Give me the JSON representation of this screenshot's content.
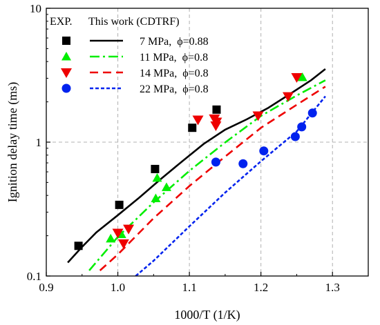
{
  "chart_data": {
    "type": "scatter",
    "xlabel": "1000/T (1/K)",
    "ylabel": "Ignition delay time (ms)",
    "xlim": [
      0.9,
      1.35
    ],
    "ylim": [
      0.1,
      10
    ],
    "yscale": "log",
    "x_ticks": [
      "0.9",
      "1.0",
      "1.1",
      "1.2",
      "1.3"
    ],
    "y_ticks": [
      "0.1",
      "1",
      "10"
    ],
    "grid": "dashed at x = 1.0, 1.1, 1.2, 1.3 and y = 1",
    "legend": {
      "position": "top-left",
      "header_exp": "EXP.",
      "header_model": "This work (CDTRF)",
      "labels": [
        "7 MPa,  ϕ=0.88",
        "11 MPa,  ϕ=0.8",
        "14 MPa,  ϕ=0.8",
        "22 MPa,  ϕ=0.8"
      ]
    },
    "series": [
      {
        "name": "7 MPa, ϕ=0.88",
        "color": "#000000",
        "marker": "square",
        "line_style": "solid",
        "exp": [
          {
            "x": 0.945,
            "y": 0.168
          },
          {
            "x": 1.002,
            "y": 0.34
          },
          {
            "x": 1.052,
            "y": 0.63
          },
          {
            "x": 1.104,
            "y": 1.28
          },
          {
            "x": 1.138,
            "y": 1.75
          }
        ],
        "model": [
          {
            "x": 0.93,
            "y": 0.126
          },
          {
            "x": 0.95,
            "y": 0.165
          },
          {
            "x": 0.97,
            "y": 0.212
          },
          {
            "x": 1.0,
            "y": 0.285
          },
          {
            "x": 1.03,
            "y": 0.385
          },
          {
            "x": 1.06,
            "y": 0.53
          },
          {
            "x": 1.09,
            "y": 0.72
          },
          {
            "x": 1.12,
            "y": 0.97
          },
          {
            "x": 1.15,
            "y": 1.24
          },
          {
            "x": 1.18,
            "y": 1.48
          },
          {
            "x": 1.21,
            "y": 1.8
          },
          {
            "x": 1.24,
            "y": 2.28
          },
          {
            "x": 1.27,
            "y": 2.9
          },
          {
            "x": 1.29,
            "y": 3.52
          }
        ]
      },
      {
        "name": "11 MPa, ϕ=0.8",
        "color": "#00ee00",
        "marker": "triangle-up",
        "line_style": "dashdot",
        "exp": [
          {
            "x": 0.99,
            "y": 0.19
          },
          {
            "x": 1.005,
            "y": 0.205
          },
          {
            "x": 1.053,
            "y": 0.38
          },
          {
            "x": 1.055,
            "y": 0.54
          },
          {
            "x": 1.068,
            "y": 0.46
          },
          {
            "x": 1.258,
            "y": 3.05
          }
        ],
        "model": [
          {
            "x": 0.96,
            "y": 0.11
          },
          {
            "x": 1.0,
            "y": 0.196
          },
          {
            "x": 1.05,
            "y": 0.355
          },
          {
            "x": 1.1,
            "y": 0.61
          },
          {
            "x": 1.15,
            "y": 0.995
          },
          {
            "x": 1.2,
            "y": 1.57
          },
          {
            "x": 1.25,
            "y": 2.23
          },
          {
            "x": 1.29,
            "y": 2.9
          }
        ]
      },
      {
        "name": "14 MPa, ϕ=0.8",
        "color": "#ee0000",
        "marker": "triangle-down",
        "line_style": "dashed",
        "exp": [
          {
            "x": 1.0,
            "y": 0.21
          },
          {
            "x": 1.008,
            "y": 0.175
          },
          {
            "x": 1.015,
            "y": 0.225
          },
          {
            "x": 1.112,
            "y": 1.47
          },
          {
            "x": 1.135,
            "y": 1.5
          },
          {
            "x": 1.137,
            "y": 1.33
          },
          {
            "x": 1.138,
            "y": 1.42
          },
          {
            "x": 1.196,
            "y": 1.58
          },
          {
            "x": 1.238,
            "y": 2.2
          },
          {
            "x": 1.25,
            "y": 3.05
          }
        ],
        "model": [
          {
            "x": 0.975,
            "y": 0.11
          },
          {
            "x": 1.0,
            "y": 0.145
          },
          {
            "x": 1.05,
            "y": 0.27
          },
          {
            "x": 1.1,
            "y": 0.47
          },
          {
            "x": 1.15,
            "y": 0.78
          },
          {
            "x": 1.2,
            "y": 1.28
          },
          {
            "x": 1.25,
            "y": 1.9
          },
          {
            "x": 1.29,
            "y": 2.6
          }
        ]
      },
      {
        "name": "22 MPa, ϕ=0.8",
        "color": "#0022ee",
        "marker": "circle",
        "line_style": "dotted",
        "exp": [
          {
            "x": 1.137,
            "y": 0.71
          },
          {
            "x": 1.175,
            "y": 0.69
          },
          {
            "x": 1.204,
            "y": 0.86
          },
          {
            "x": 1.248,
            "y": 1.1
          },
          {
            "x": 1.257,
            "y": 1.3
          },
          {
            "x": 1.272,
            "y": 1.65
          }
        ],
        "model": [
          {
            "x": 1.025,
            "y": 0.1
          },
          {
            "x": 1.05,
            "y": 0.13
          },
          {
            "x": 1.1,
            "y": 0.235
          },
          {
            "x": 1.15,
            "y": 0.42
          },
          {
            "x": 1.2,
            "y": 0.72
          },
          {
            "x": 1.25,
            "y": 1.2
          },
          {
            "x": 1.29,
            "y": 2.2
          }
        ]
      }
    ]
  }
}
